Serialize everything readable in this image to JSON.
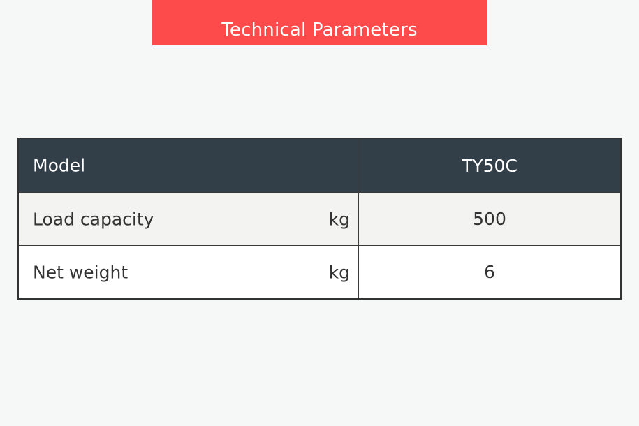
{
  "banner": {
    "title": "Technical Parameters",
    "color": "#fd4a4a"
  },
  "table": {
    "header": {
      "label": "Model",
      "value": "TY50C"
    },
    "rows": [
      {
        "label": "Load capacity",
        "unit": "kg",
        "value": "500"
      },
      {
        "label": "Net weight",
        "unit": "kg",
        "value": "6"
      }
    ]
  }
}
